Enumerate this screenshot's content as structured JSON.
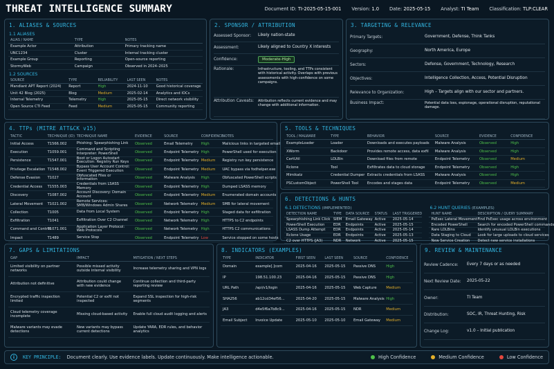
{
  "header": {
    "title": "THREAT INTELLIGENCE SUMMARY",
    "meta": [
      {
        "label": "Document ID:",
        "value": "TI-2025-05-15-001"
      },
      {
        "label": "Version:",
        "value": "1.0"
      },
      {
        "label": "Date:",
        "value": "2025-05-15"
      },
      {
        "label": "Analyst:",
        "value": "TI Team"
      },
      {
        "label": "Classification:",
        "value": "TLP:CLEAR"
      }
    ]
  },
  "aliases": {
    "title": "1. ALIASES & SOURCES",
    "sub1": "1.1 ALIASES",
    "alias_headers": [
      "ALIAS / NAME",
      "TYPE",
      "NOTES"
    ],
    "alias_rows": [
      [
        "Example Actor",
        "Attribution",
        "Primary tracking name"
      ],
      [
        "UNC1234",
        "Cluster",
        "Internal tracking cluster"
      ],
      [
        "Example Group",
        "Reporting",
        "Open-source reporting"
      ],
      [
        "StormyWeb",
        "Campaign",
        "Observed in 2024–2025"
      ]
    ],
    "sub2": "1.2 SOURCES",
    "source_headers": [
      "SOURCE",
      "TYPE",
      "RELIABILITY",
      "LAST SEEN",
      "NOTES"
    ],
    "source_rows": [
      [
        "Mandiant APT Report (2024)",
        "Report",
        "High",
        "2024-11-10",
        "Good historical coverage"
      ],
      [
        "Unit 42 Blog (2025)",
        "Blog",
        "Medium",
        "2025-02-14",
        "Analytics and IOCs"
      ],
      [
        "Internal Telemetry",
        "Telemetry",
        "High",
        "2025-05-15",
        "Direct network visibility"
      ],
      [
        "Open Source CTI Feed",
        "Feed",
        "Medium",
        "2025-05-15",
        "Community reporting"
      ]
    ]
  },
  "sponsor": {
    "title": "2. SPONSOR / ATTRIBUTION",
    "rows": [
      {
        "k": "Assessed Sponsor:",
        "v": "Likely nation-state"
      },
      {
        "k": "Assessment:",
        "v": "Likely aligned to Country X interests"
      },
      {
        "k": "Confidence:",
        "v": "Moderate-High"
      },
      {
        "k": "Rationale:",
        "v": "Infrastructure, tooling, and TTPs consistent with historical activity. Overlaps with previous assessments with high-confidence on some campaigns."
      },
      {
        "k": "Attribution Caveats:",
        "v": "Attribution reflects current evidence and may change with additional information."
      }
    ]
  },
  "targeting": {
    "title": "3. TARGETING & RELEVANCE",
    "rows": [
      {
        "k": "Primary Targets:",
        "v": "Government, Defense, Think Tanks"
      },
      {
        "k": "Geography:",
        "v": "North America, Europe"
      },
      {
        "k": "Sectors:",
        "v": "Defense, Government, Technology, Research"
      },
      {
        "k": "Objectives:",
        "v": "Intelligence Collection, Access, Potential Disruption"
      },
      {
        "k": "Relevance to Organization:",
        "v": "High – Targets align with our sector and partners."
      },
      {
        "k": "Business Impact:",
        "v": "Potential data loss, espionage, operational disruption, reputational damage."
      }
    ]
  },
  "ttps": {
    "title": "4. TTPs (MITRE ATT&CK v15)",
    "headers": [
      "TACTIC",
      "TECHNIQUE (ID)",
      "TECHNIQUE NAME",
      "EVIDENCE",
      "SOURCE",
      "CONFIDENCE",
      "NOTES"
    ],
    "rows": [
      [
        "Initial Access",
        "T1566.002",
        "Phishing: Spearphishing Link",
        "Observed",
        "Email Telemetry",
        "High",
        "Malicious links in targeted emails"
      ],
      [
        "Execution",
        "T1059.001",
        "Command and Scripting Interpreter: PowerShell",
        "Observed",
        "Endpoint Telemetry",
        "High",
        "PowerShell used for execution"
      ],
      [
        "Persistence",
        "T1547.001",
        "Boot or Logon Autostart Execution: Registry Run Keys",
        "Observed",
        "Endpoint Telemetry",
        "Medium",
        "Registry run key persistence"
      ],
      [
        "Privilege Escalation",
        "T1548.002",
        "Bypass User Account Control: Event Triggered Execution",
        "Observed",
        "Endpoint Telemetry",
        "Medium",
        "UAC bypass via fodhelper.exe"
      ],
      [
        "Defense Evasion",
        "T1027",
        "Obfuscated Files or Information",
        "Observed",
        "Malware Analysis",
        "High",
        "Obfuscated PowerShell scripts"
      ],
      [
        "Credential Access",
        "T1555.003",
        "Credentials from LSASS Memory",
        "Observed",
        "Endpoint Telemetry",
        "High",
        "Dumped LSASS memory"
      ],
      [
        "Discovery",
        "T1087.002",
        "Account Discovery: Domain Account",
        "Observed",
        "Endpoint Telemetry",
        "Medium",
        "Enumerated domain accounts"
      ],
      [
        "Lateral Movement",
        "T1021.002",
        "Remote Services: SMB/Windows Admin Shares",
        "Observed",
        "Network Telemetry",
        "Medium",
        "SMB for lateral movement"
      ],
      [
        "Collection",
        "T1005",
        "Data from Local System",
        "Observed",
        "Endpoint Telemetry",
        "High",
        "Staged data for exfiltration"
      ],
      [
        "Exfiltration",
        "T1041",
        "Exfiltration Over C2 Channel",
        "Observed",
        "Network Telemetry",
        "High",
        "HTTPS to C2 endpoints"
      ],
      [
        "Command and Control",
        "T1071.001",
        "Application Layer Protocol: Web Protocols",
        "Observed",
        "Network Telemetry",
        "High",
        "HTTPS C2 communications"
      ],
      [
        "Impact",
        "T1489",
        "Service Stop",
        "Observed",
        "Endpoint Telemetry",
        "Low",
        "Service stopped on some hosts"
      ]
    ]
  },
  "tools": {
    "title": "5. TOOLS & TECHNIQUES",
    "headers": [
      "TOOL / MALWARE",
      "TYPE",
      "BEHAVIOR",
      "SOURCE",
      "EVIDENCE",
      "CONFIDENCE"
    ],
    "rows": [
      [
        "ExampleLoader",
        "Loader",
        "Downloads and executes payloads",
        "Malware Analysis",
        "Observed",
        "High"
      ],
      [
        "XWorm",
        "Backdoor",
        "Provides remote access, data exfil",
        "Malware Analysis",
        "Observed",
        "High"
      ],
      [
        "CertUtil",
        "LOLBin",
        "Download files from remote",
        "Endpoint Telemetry",
        "Observed",
        "Medium"
      ],
      [
        "Rclone",
        "Tool",
        "Exfiltrates data to cloud storage",
        "Endpoint Telemetry",
        "Observed",
        "High"
      ],
      [
        "Mimikatz",
        "Credential Dumper",
        "Extracts credentials from LSASS",
        "Malware Analysis",
        "Observed",
        "High"
      ],
      [
        "PSCustomObject",
        "PowerShell Tool",
        "Encodes and stages data",
        "Endpoint Telemetry",
        "Observed",
        "Medium"
      ]
    ]
  },
  "detections": {
    "title": "6. DETECTIONS & HUNTS",
    "sub1": "6.1 DETECTIONS",
    "sub1_paren": "(IMPLEMENTED)",
    "det_headers": [
      "DETECTION NAME",
      "TYPE",
      "DATA SOURCE",
      "STATUS",
      "LAST TRIGGERED"
    ],
    "det_rows": [
      [
        "Spearphishing Link Click",
        "SIEM",
        "Email Gateway",
        "Active",
        "2025-05-14"
      ],
      [
        "PowerShell Execution",
        "EDR",
        "Endpoints",
        "Active",
        "2025-05-15"
      ],
      [
        "LSASS Dump Attempt",
        "EDR",
        "Endpoints",
        "Active",
        "2025-05-14"
      ],
      [
        "Rclone Usage",
        "EDR",
        "Endpoints",
        "Active",
        "2025-05-13"
      ],
      [
        "C2 over HTTPS (JA3)",
        "NDR",
        "Network",
        "Active",
        "2025-05-15"
      ]
    ],
    "sub2": "6.2 HUNT QUERIES",
    "sub2_paren": "(EXAMPLES)",
    "hunt_headers": [
      "HUNT NAME",
      "DESCRIPTION / QUERY SUMMARY"
    ],
    "hunt_rows": [
      [
        "PsExec Lateral Movement",
        "Find PsExec usage across environment"
      ],
      [
        "Encoded PowerShell",
        "Search for encoded PowerShell commands"
      ],
      [
        "Rare LOLBins",
        "Identify unusual LOLBin executions"
      ],
      [
        "Data Staging to Cloud",
        "Look for large uploads to cloud services"
      ],
      [
        "New Service Creation",
        "Detect new service installations"
      ]
    ]
  },
  "gaps": {
    "title": "7. GAPS & LIMITATIONS",
    "headers": [
      "GAP",
      "IMPACT",
      "MITIGATION / NEXT STEPS"
    ],
    "rows": [
      [
        "Limited visibility on partner networks",
        "Possible missed activity outside internal visibility",
        "Increase telemetry sharing and VPN logs"
      ],
      [
        "Attribution not definitive",
        "Attribution could change with new evidence",
        "Continue collection and third-party reporting review"
      ],
      [
        "Encrypted traffic inspection limited",
        "Potential C2 or exfil not inspected",
        "Expand SSL inspection for high-risk segments"
      ],
      [
        "Cloud telemetry coverage incomplete",
        "Missing cloud-based activity",
        "Enable full cloud audit logging and alerts"
      ],
      [
        "Malware variants may evade detections",
        "New variants may bypass current detections",
        "Update YARA, EDR rules, and behavior analytics"
      ]
    ]
  },
  "indicators": {
    "title": "8. INDICATORS",
    "title_paren": "(EXAMPLES)",
    "headers": [
      "TYPE",
      "INDICATOR",
      "FIRST SEEN",
      "LAST SEEN",
      "SOURCE",
      "CONFIDENCE"
    ],
    "rows": [
      [
        "Domain",
        "example[.]com",
        "2025-04-16",
        "2025-05-15",
        "Passive DNS",
        "High"
      ],
      [
        "IP",
        "198.51.100.23",
        "2025-04-16",
        "2025-05-15",
        "Passive DNS",
        "High"
      ],
      [
        "URL Path",
        "/api/v1/login",
        "2025-04-16",
        "2025-05-15",
        "Web Capture",
        "Medium"
      ],
      [
        "SHA256",
        "ab12cd34ef56...",
        "2025-04-20",
        "2025-05-15",
        "Malware Analysis",
        "High"
      ],
      [
        "JA3",
        "d4e5f6a7b8c9...",
        "2025-04-16",
        "2025-05-15",
        "NDR",
        "Medium"
      ],
      [
        "Email Subject",
        "Invoice Update",
        "2025-05-10",
        "2025-05-10",
        "Email Gateway",
        "Medium"
      ]
    ]
  },
  "review": {
    "title": "9. REVIEW & MAINTENANCE",
    "rows": [
      {
        "k": "Review Cadence:",
        "v": "Every 7 days or as needed"
      },
      {
        "k": "Next Review Date:",
        "v": "2025-05-22"
      },
      {
        "k": "Owner:",
        "v": "TI Team"
      },
      {
        "k": "Distribution:",
        "v": "SOC, IR, Threat Hunting, Risk"
      },
      {
        "k": "Change Log:",
        "v": "v1.0 – Initial publication"
      }
    ]
  },
  "footer": {
    "icon": "info-icon",
    "label": "KEY PRINCIPLE:",
    "text": "Document clearly.  Use evidence labels.  Update continuously.  Make intelligence actionable.",
    "legend": [
      {
        "label": "High Confidence",
        "color": "#4fc14a"
      },
      {
        "label": "Medium Confidence",
        "color": "#e4b02a"
      },
      {
        "label": "Low Confidence",
        "color": "#e2473e"
      }
    ]
  },
  "colors": {
    "accent": "#33b8e4",
    "high": "#4fc14a",
    "medium": "#e4b02a",
    "low": "#e2473e",
    "background": "#0a1722"
  }
}
